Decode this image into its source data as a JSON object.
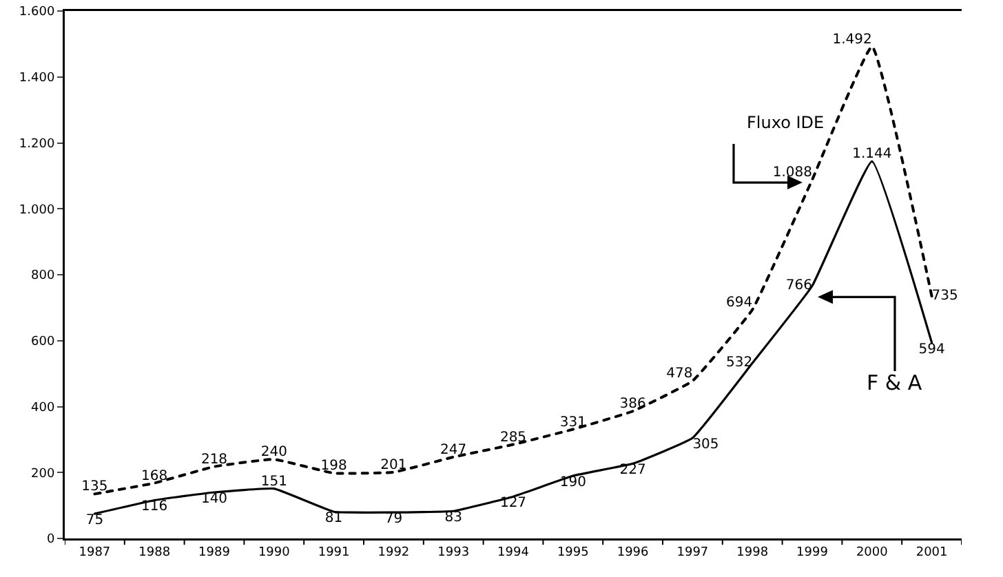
{
  "chart_data": {
    "type": "line",
    "categories": [
      "1987",
      "1988",
      "1989",
      "1990",
      "1991",
      "1992",
      "1993",
      "1994",
      "1995",
      "1996",
      "1997",
      "1998",
      "1999",
      "2000",
      "2001"
    ],
    "series": [
      {
        "name": "Fluxo IDE",
        "color": "#000000",
        "line_style": "dashed",
        "values": [
          135,
          168,
          218,
          240,
          198,
          201,
          247,
          285,
          331,
          386,
          478,
          694,
          1088,
          1492,
          735
        ],
        "value_labels": [
          "135",
          "168",
          "218",
          "240",
          "198",
          "201",
          "247",
          "285",
          "331",
          "386",
          "478",
          "694",
          "1.088",
          "1.492",
          "735"
        ]
      },
      {
        "name": "F & A",
        "color": "#000000",
        "line_style": "solid",
        "values": [
          75,
          116,
          140,
          151,
          81,
          79,
          83,
          127,
          190,
          227,
          305,
          532,
          766,
          1144,
          594
        ],
        "value_labels": [
          "75",
          "116",
          "140",
          "151",
          "81",
          "79",
          "83",
          "127",
          "190",
          "227",
          "305",
          "532",
          "766",
          "1.144",
          "594"
        ]
      }
    ],
    "ylim": [
      0,
      1600
    ],
    "yticks": [
      0,
      200,
      400,
      {
        "value": 600,
        "label": "600"
      },
      {
        "value": 800,
        "label": "800"
      },
      {
        "value": 1000,
        "label": "1.000"
      },
      {
        "value": 1200,
        "label": "1.200"
      },
      {
        "value": 1400,
        "label": "1.400"
      },
      {
        "value": 1600,
        "label": "1.600"
      }
    ],
    "grid": false,
    "legend": false,
    "marker": "none"
  }
}
